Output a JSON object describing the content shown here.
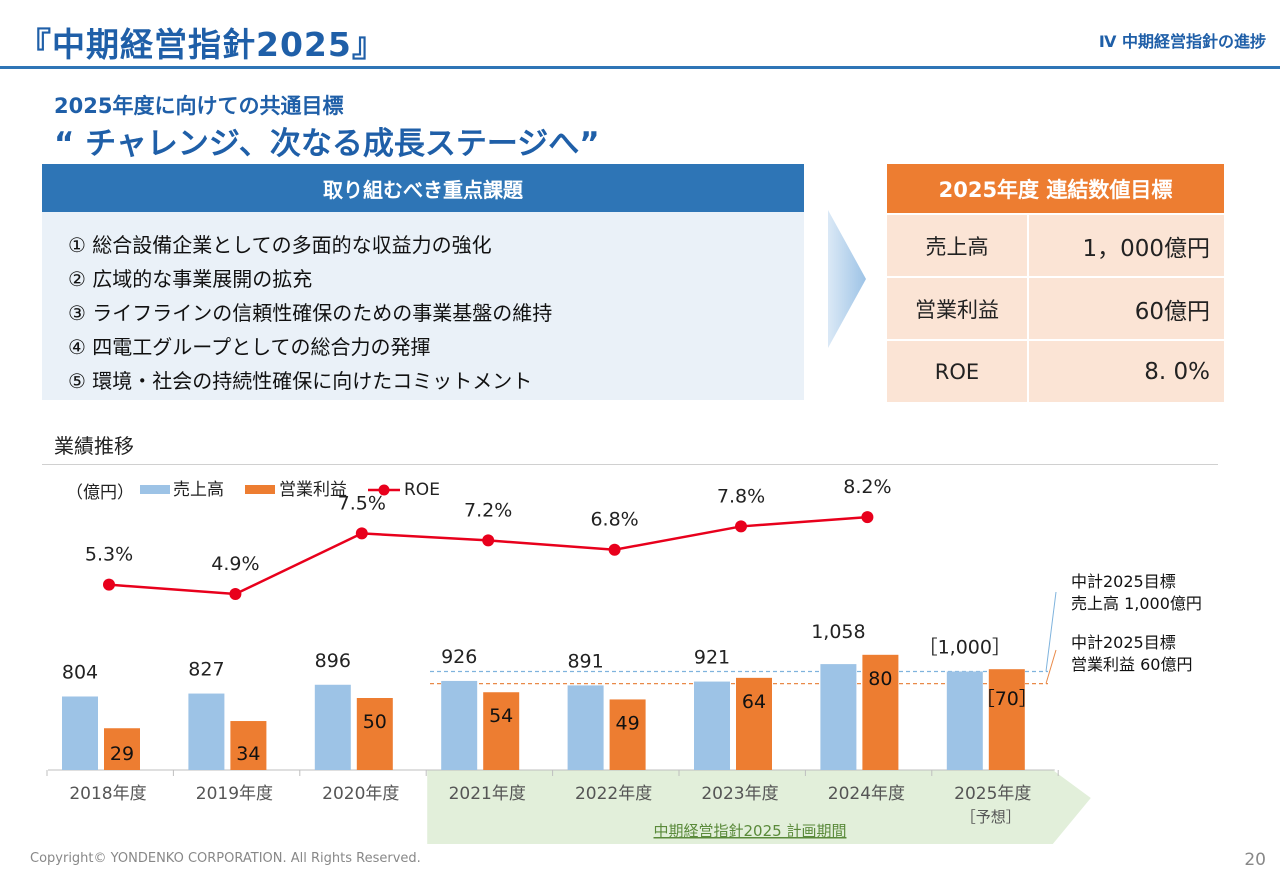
{
  "header": {
    "title": "『中期経営指針2025』",
    "section": "Ⅳ 中期経営指針の進捗"
  },
  "subtitle": {
    "line1": "2025年度に向けての共通目標",
    "line2": "“ チャレンジ、次なる成長ステージへ”"
  },
  "issues": {
    "heading": "取り組むべき重点課題",
    "items": [
      "① 総合設備企業としての多面的な収益力の強化",
      "② 広域的な事業展開の拡充",
      "③ ライフラインの信頼性確保のための事業基盤の維持",
      "④ 四電工グループとしての総合力の発揮",
      "⑤ 環境・社会の持続性確保に向けたコミットメント"
    ]
  },
  "targets": {
    "heading": "2025年度 連結数値目標",
    "rows": [
      {
        "label": "売上高",
        "value": "1，000億円"
      },
      {
        "label": "営業利益",
        "value": "60億円"
      },
      {
        "label": "ROE",
        "value": "8. 0%"
      }
    ]
  },
  "performance": {
    "heading": "業績推移"
  },
  "colors": {
    "blue": "#2e75b6",
    "orange": "#ed7d31",
    "light_blue": "#9dc3e6",
    "red": "#e8001c",
    "green_band": "#e2efda"
  },
  "chart_data": {
    "type": "bar",
    "unit_label": "（億円）",
    "categories": [
      "2018年度",
      "2019年度",
      "2020年度",
      "2021年度",
      "2022年度",
      "2023年度",
      "2024年度",
      "2025年度"
    ],
    "category_note": "［予想］",
    "series": [
      {
        "name": "売上高",
        "values": [
          804,
          827,
          896,
          926,
          891,
          921,
          1058,
          1000
        ],
        "labels": [
          "804",
          "827",
          "896",
          "926",
          "891",
          "921",
          "1,058",
          "［1,000］"
        ]
      },
      {
        "name": "営業利益",
        "values": [
          29,
          34,
          50,
          54,
          49,
          64,
          80,
          70
        ],
        "labels": [
          "29",
          "34",
          "50",
          "54",
          "49",
          "64",
          "80",
          "［70］"
        ]
      },
      {
        "name": "ROE",
        "type": "line",
        "values": [
          5.3,
          4.9,
          7.5,
          7.2,
          6.8,
          7.8,
          8.2,
          null
        ],
        "labels": [
          "5.3%",
          "4.9%",
          "7.5%",
          "7.2%",
          "6.8%",
          "7.8%",
          "8.2%",
          ""
        ]
      }
    ],
    "legend": [
      "売上高",
      "営業利益",
      "ROE"
    ],
    "legend_position": "top-left",
    "target_lines": [
      {
        "series": "売上高",
        "value": 1000,
        "label_line1": "中計2025目標",
        "label_line2": "売上高  1,000億円"
      },
      {
        "series": "営業利益",
        "value": 60,
        "label_line1": "中計2025目標",
        "label_line2": "営業利益  60億円"
      }
    ],
    "plan_period_label": "中期経営指針2025  計画期間"
  },
  "footer": {
    "copyright": "Copyright© YONDENKO CORPORATION. All Rights Reserved.",
    "page": "20"
  }
}
